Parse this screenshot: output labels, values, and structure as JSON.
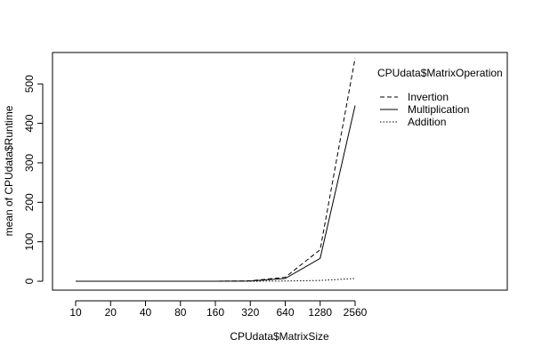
{
  "chart_data": {
    "type": "line",
    "title": "",
    "xlabel": "CPUdata$MatrixSize",
    "ylabel": "mean of CPUdata$Runtime",
    "categories": [
      "10",
      "20",
      "40",
      "80",
      "160",
      "320",
      "640",
      "1280",
      "2560"
    ],
    "ylim": [
      -12,
      572
    ],
    "yticks": [
      0,
      100,
      200,
      300,
      400,
      500
    ],
    "grid": false,
    "legend": {
      "title": "CPUdata$MatrixOperation",
      "placement": "top-right"
    },
    "series": [
      {
        "name": "Invertion",
        "line_style": "dashed",
        "values": [
          0,
          0,
          0,
          0,
          0,
          1,
          10,
          80,
          565
        ]
      },
      {
        "name": "Multiplication",
        "line_style": "solid",
        "values": [
          0,
          0,
          0,
          0,
          0,
          0.5,
          7,
          58,
          445
        ]
      },
      {
        "name": "Addition",
        "line_style": "dotted",
        "values": [
          0,
          0,
          0,
          0,
          0,
          0,
          0.5,
          2,
          7
        ]
      }
    ],
    "colors": {
      "line": "#000000",
      "axes": "#000000",
      "background": "#ffffff"
    }
  }
}
